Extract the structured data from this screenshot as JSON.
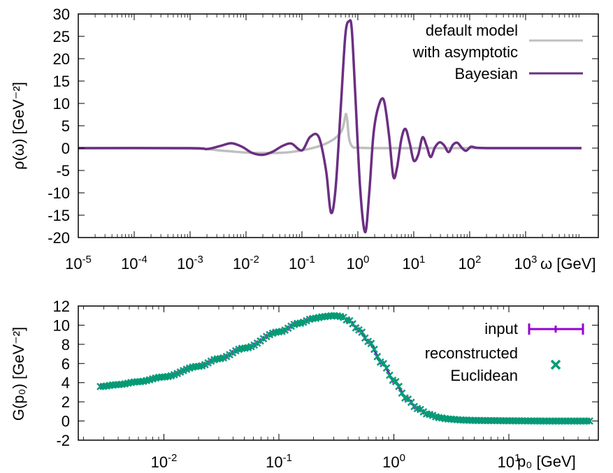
{
  "chart_data": [
    {
      "type": "line",
      "xlabel": "ω [GeV]",
      "ylabel": "ρ(ω) [GeV⁻²]",
      "xscale": "log",
      "xlim": [
        1e-05,
        20000
      ],
      "ylim": [
        -20,
        30
      ],
      "x_ticks": [
        {
          "value": 1e-05,
          "base": "10",
          "exp": "-5"
        },
        {
          "value": 0.0001,
          "base": "10",
          "exp": "-4"
        },
        {
          "value": 0.001,
          "base": "10",
          "exp": "-3"
        },
        {
          "value": 0.01,
          "base": "10",
          "exp": "-2"
        },
        {
          "value": 0.1,
          "base": "10",
          "exp": "-1"
        },
        {
          "value": 1,
          "base": "10",
          "exp": "0"
        },
        {
          "value": 10,
          "base": "10",
          "exp": "1"
        },
        {
          "value": 100,
          "base": "10",
          "exp": "2"
        },
        {
          "value": 1000,
          "base": "10",
          "exp": "3"
        }
      ],
      "y_ticks": [
        {
          "value": 30,
          "label": "30"
        },
        {
          "value": 25,
          "label": "25"
        },
        {
          "value": 20,
          "label": "20"
        },
        {
          "value": 15,
          "label": "15"
        },
        {
          "value": 10,
          "label": "10"
        },
        {
          "value": 5,
          "label": "5"
        },
        {
          "value": 0,
          "label": "0"
        },
        {
          "value": -5,
          "label": "-5"
        },
        {
          "value": -10,
          "label": "-10"
        },
        {
          "value": -15,
          "label": "-15"
        },
        {
          "value": -20,
          "label": "-20"
        }
      ],
      "grid": false,
      "legend_position": "top-right",
      "series": [
        {
          "name": "default model\nwith asymptotic",
          "color": "#bfbfbf",
          "x": [
            1e-05,
            0.001,
            0.004,
            0.01,
            0.02,
            0.05,
            0.1,
            0.2,
            0.3,
            0.4,
            0.5,
            0.55,
            0.6,
            0.62,
            0.65,
            0.7,
            0.8,
            1,
            2,
            5,
            20,
            100,
            1000,
            10000
          ],
          "y": [
            0,
            -0.1,
            -0.6,
            -1.0,
            -1.1,
            -1.0,
            -0.5,
            0.4,
            1.3,
            2.3,
            3.6,
            5.0,
            7.3,
            7.5,
            6.0,
            2.0,
            0.3,
            0.1,
            0.0,
            0.0,
            0.0,
            0.0,
            0.0,
            0.0
          ]
        },
        {
          "name": "Bayesian",
          "color": "#6b2f82",
          "x": [
            1e-05,
            0.001,
            0.002,
            0.0035,
            0.0055,
            0.0085,
            0.013,
            0.02,
            0.03,
            0.045,
            0.065,
            0.1,
            0.14,
            0.2,
            0.27,
            0.33,
            0.4,
            0.5,
            0.6,
            0.7,
            0.78,
            0.9,
            1.1,
            1.35,
            1.6,
            1.9,
            2.3,
            2.9,
            3.6,
            4.3,
            5,
            6,
            7.1,
            8.5,
            10,
            12,
            14.3,
            17,
            20,
            24,
            29,
            35,
            42,
            50,
            60,
            72,
            86,
            105,
            130,
            200,
            500,
            1000,
            5000,
            10000
          ],
          "y": [
            0,
            0,
            -0.2,
            0.5,
            1.1,
            0.3,
            -1.1,
            -1.5,
            -0.8,
            0.5,
            1.0,
            -0.5,
            2.5,
            2.5,
            -5.0,
            -14.4,
            -9.0,
            10.0,
            25.5,
            28.4,
            26.5,
            12.0,
            -9.0,
            -18.8,
            -10.0,
            3.0,
            9.0,
            10.8,
            3.0,
            -6.3,
            -4.5,
            2.0,
            4.3,
            1.0,
            -2.8,
            -1.5,
            2.4,
            0.5,
            -2.0,
            0.2,
            1.3,
            0.6,
            -0.9,
            0.7,
            1.2,
            0.1,
            -0.6,
            0.3,
            0.1,
            0.0,
            0.0,
            0.0,
            0.0,
            0.0
          ]
        }
      ]
    },
    {
      "type": "scatter",
      "xlabel": "p₀ [GeV]",
      "ylabel": "G(p₀) [GeV⁻²]",
      "xscale": "log",
      "xlim": [
        0.0018,
        60
      ],
      "ylim": [
        -2,
        12
      ],
      "x_ticks": [
        {
          "value": 0.01,
          "base": "10",
          "exp": "-2"
        },
        {
          "value": 0.1,
          "base": "10",
          "exp": "-1"
        },
        {
          "value": 1,
          "base": "10",
          "exp": "0"
        },
        {
          "value": 10,
          "base": "10",
          "exp": "1"
        }
      ],
      "y_ticks": [
        {
          "value": 12,
          "label": "12"
        },
        {
          "value": 10,
          "label": "10"
        },
        {
          "value": 8,
          "label": "8"
        },
        {
          "value": 6,
          "label": "6"
        },
        {
          "value": 4,
          "label": "4"
        },
        {
          "value": 2,
          "label": "2"
        },
        {
          "value": 0,
          "label": "0"
        },
        {
          "value": -2,
          "label": "-2"
        }
      ],
      "grid": false,
      "legend_position": "top-right",
      "series": [
        {
          "name": "input",
          "color": "#9400d3",
          "marker": "errorbar"
        },
        {
          "name": "reconstructed\nEuclidean",
          "color": "#009e73",
          "marker": "x"
        }
      ],
      "curve_x": [
        0.0028,
        0.004,
        0.006,
        0.01,
        0.02,
        0.03,
        0.05,
        0.1,
        0.15,
        0.2,
        0.25,
        0.3,
        0.35,
        0.4,
        0.5,
        0.6,
        0.8,
        1,
        1.3,
        1.6,
        2,
        2.5,
        3,
        4,
        5,
        7,
        10,
        20,
        40,
        52
      ],
      "curve_y": [
        3.6,
        3.8,
        4.1,
        4.6,
        5.7,
        6.5,
        7.6,
        9.3,
        10.2,
        10.7,
        10.9,
        11.0,
        10.9,
        10.5,
        9.5,
        8.3,
        6.0,
        4.2,
        2.3,
        1.3,
        0.7,
        0.35,
        0.2,
        0.1,
        0.06,
        0.04,
        0.02,
        0.0,
        0.0,
        0.0
      ]
    }
  ]
}
